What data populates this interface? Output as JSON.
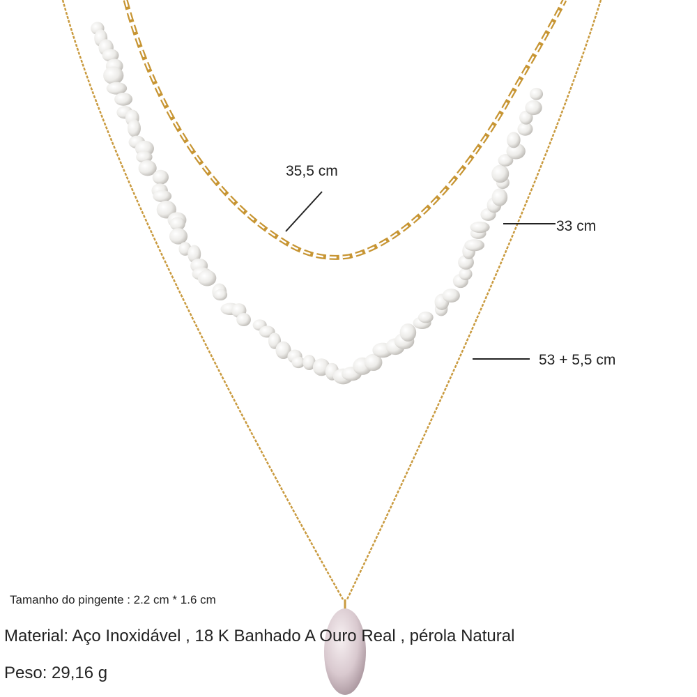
{
  "labels": {
    "top": "35,5 cm",
    "middle": "33 cm",
    "bottom": "53 + 5,5 cm"
  },
  "details": {
    "pendant_size": "Tamanho do pingente : 2.2 cm * 1.6 cm",
    "material": "Material: Aço Inoxidável , 18 K Banhado A Ouro Real , pérola Natural",
    "weight": "Peso: 29,16 g"
  }
}
